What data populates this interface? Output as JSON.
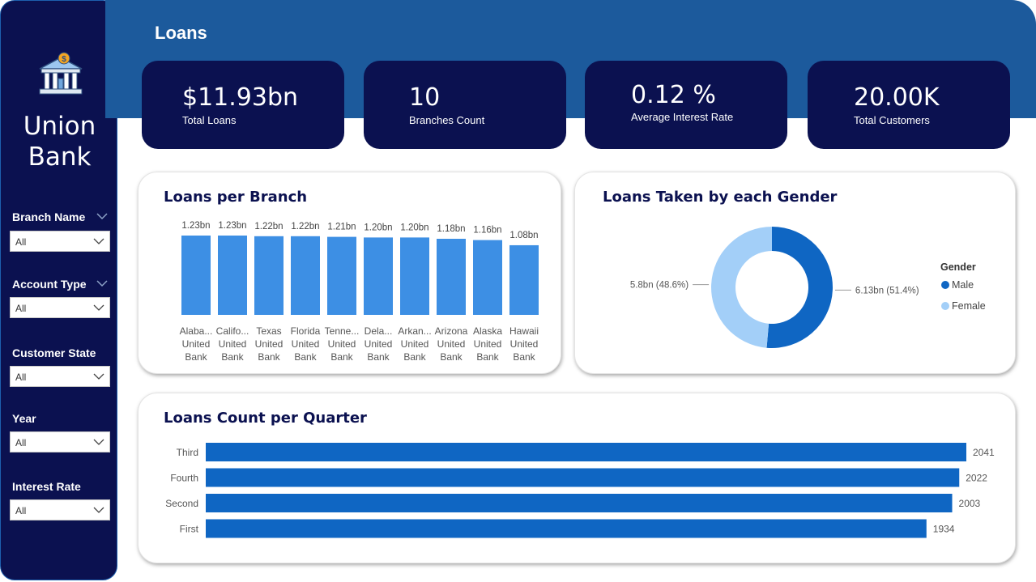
{
  "sidebar": {
    "brand_line1": "Union",
    "brand_line2": "Bank",
    "filters": [
      {
        "label": "Branch Name",
        "value": "All",
        "has_toggle": true
      },
      {
        "label": "Account Type",
        "value": "All",
        "has_toggle": true
      },
      {
        "label": "Customer State",
        "value": "All",
        "has_toggle": false
      },
      {
        "label": "Year",
        "value": "All",
        "has_toggle": false
      },
      {
        "label": "Interest Rate",
        "value": "All",
        "has_toggle": false
      }
    ]
  },
  "header": {
    "title": "Loans"
  },
  "kpis": [
    {
      "value": "$11.93bn",
      "label": "Total Loans"
    },
    {
      "value": "10",
      "label": "Branches Count"
    },
    {
      "value": "0.12 %",
      "label": "Average Interest Rate"
    },
    {
      "value": "20.00K",
      "label": "Total Customers"
    }
  ],
  "colors": {
    "sidebar_bg": "#0b1150",
    "header_bg": "#1c5a9c",
    "bar_branch": "#3d8fe4",
    "bar_quarter": "#0f66c3",
    "male": "#0f66c3",
    "female": "#a3cff8"
  },
  "icons": {
    "logo": "bank-building-icon",
    "dropdown": "chevron-down-icon"
  },
  "charts": {
    "branch": {
      "title": "Loans per Branch",
      "chart_data": {
        "type": "bar",
        "categories": [
          "Alaba... United Bank",
          "Califo... United Bank",
          "Texas United Bank",
          "Florida United Bank",
          "Tenne... United Bank",
          "Dela... United Bank",
          "Arkan... United Bank",
          "Arizona United Bank",
          "Alaska United Bank",
          "Hawaii United Bank"
        ],
        "category_lines": [
          [
            "Alaba...",
            "United",
            "Bank"
          ],
          [
            "Califo...",
            "United",
            "Bank"
          ],
          [
            "Texas",
            "United",
            "Bank"
          ],
          [
            "Florida",
            "United",
            "Bank"
          ],
          [
            "Tenne...",
            "United",
            "Bank"
          ],
          [
            "Dela...",
            "United",
            "Bank"
          ],
          [
            "Arkan...",
            "United",
            "Bank"
          ],
          [
            "Arizona",
            "United",
            "Bank"
          ],
          [
            "Alaska",
            "United",
            "Bank"
          ],
          [
            "Hawaii",
            "United",
            "Bank"
          ]
        ],
        "values": [
          1.23,
          1.23,
          1.22,
          1.22,
          1.21,
          1.2,
          1.2,
          1.18,
          1.16,
          1.08
        ],
        "value_labels": [
          "1.23bn",
          "1.23bn",
          "1.22bn",
          "1.22bn",
          "1.21bn",
          "1.20bn",
          "1.20bn",
          "1.18bn",
          "1.16bn",
          "1.08bn"
        ],
        "unit": "bn",
        "ylim": [
          0,
          1.23
        ]
      }
    },
    "gender": {
      "title": "Loans Taken by each Gender",
      "chart_data": {
        "type": "pie",
        "donut": true,
        "legend_title": "Gender",
        "legend_position": "right",
        "slices": [
          {
            "name": "Male",
            "value": 6.13,
            "percent": 51.4,
            "label": "6.13bn (51.4%)",
            "color": "#0f66c3"
          },
          {
            "name": "Female",
            "value": 5.8,
            "percent": 48.6,
            "label": "5.8bn (48.6%)",
            "color": "#a3cff8"
          }
        ]
      }
    },
    "quarter": {
      "title": "Loans Count per Quarter",
      "chart_data": {
        "type": "bar",
        "orientation": "horizontal",
        "categories": [
          "Third",
          "Fourth",
          "Second",
          "First"
        ],
        "values": [
          2041,
          2022,
          2003,
          1934
        ],
        "value_labels": [
          "2041",
          "2022",
          "2003",
          "1934"
        ],
        "xlim": [
          0,
          2041
        ]
      }
    }
  }
}
